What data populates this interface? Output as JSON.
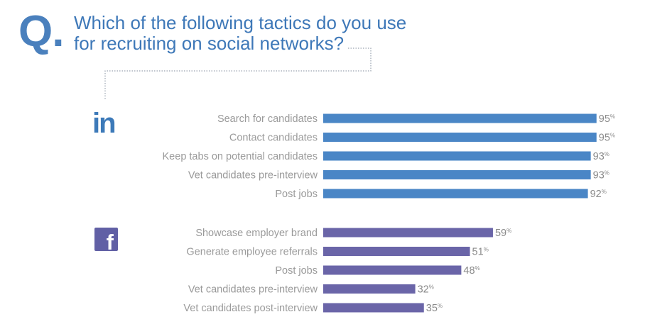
{
  "header": {
    "q_mark": "Q",
    "q_dot": ".",
    "question_line1": "Which of the following tactics do you use",
    "question_line2": "for recruiting on social networks?"
  },
  "icons": {
    "linkedin": "in",
    "facebook": "f"
  },
  "colors": {
    "linkedin": "#4a86c6",
    "facebook": "#6a65a8",
    "title": "#3e78b8"
  },
  "chart_data": {
    "type": "bar",
    "orientation": "horizontal",
    "value_suffix": "%",
    "xlim": [
      0,
      100
    ],
    "grid": false,
    "groups": [
      {
        "icon": "linkedin-icon",
        "color": "#4a86c6",
        "categories": [
          "Search for candidates",
          "Contact candidates",
          "Keep tabs on potential candidates",
          "Vet candidates pre-interview",
          "Post jobs"
        ],
        "values": [
          95,
          95,
          93,
          93,
          92
        ]
      },
      {
        "icon": "facebook-icon",
        "color": "#6a65a8",
        "categories": [
          "Showcase employer brand",
          "Generate employee referrals",
          "Post jobs",
          "Vet candidates pre-interview",
          "Vet candidates post-interview"
        ],
        "values": [
          59,
          51,
          48,
          32,
          35
        ]
      }
    ]
  }
}
